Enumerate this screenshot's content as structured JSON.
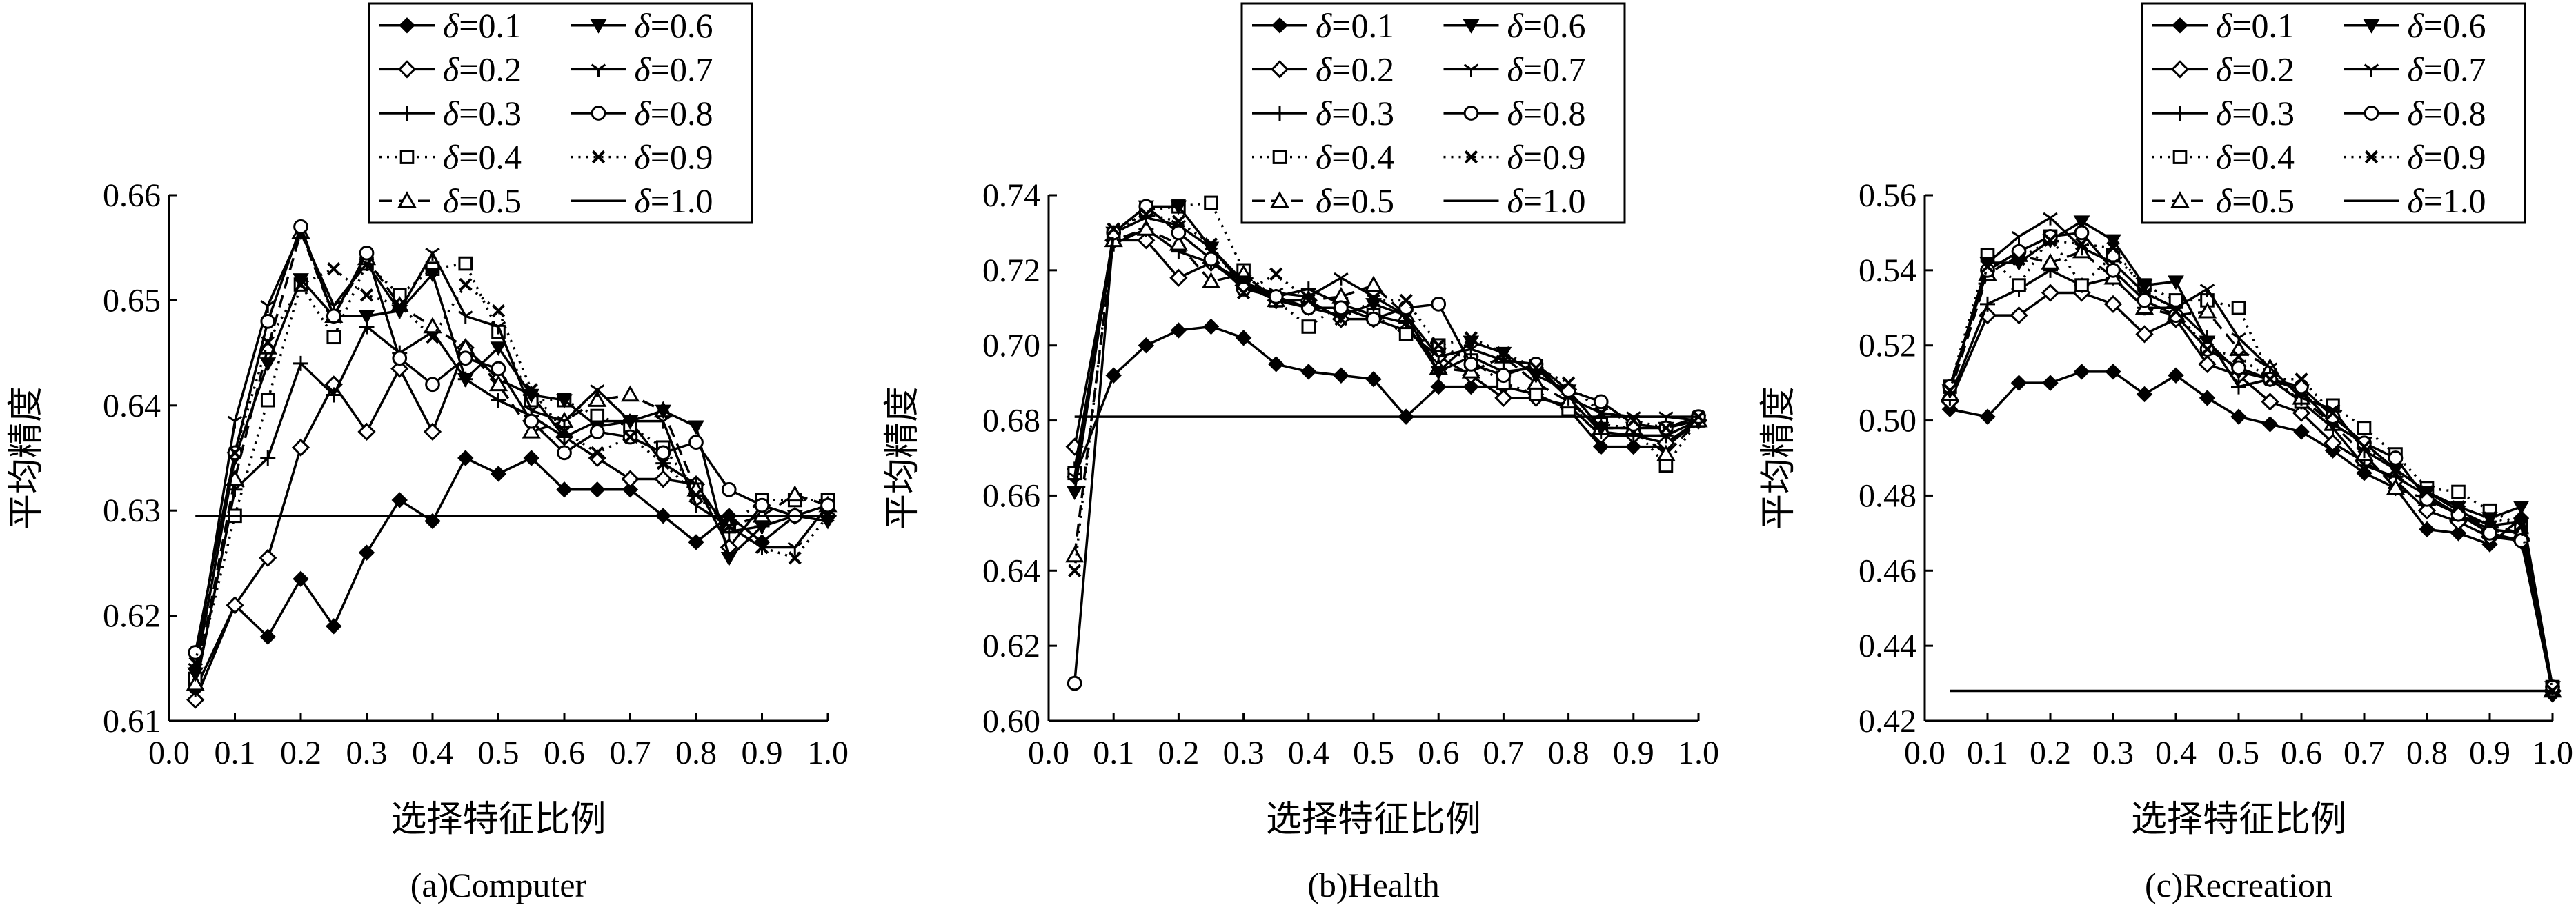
{
  "chart_data": [
    {
      "type": "line",
      "caption": "(a)Computer",
      "xlabel": "选择特征比例",
      "ylabel": "平均精度",
      "xlim": [
        0.0,
        1.0
      ],
      "ylim": [
        0.61,
        0.66
      ],
      "xticks": [
        "0.0",
        "0.1",
        "0.2",
        "0.3",
        "0.4",
        "0.5",
        "0.6",
        "0.7",
        "0.8",
        "0.9",
        "1.0"
      ],
      "yticks": [
        "0.61",
        "0.62",
        "0.63",
        "0.64",
        "0.65",
        "0.66"
      ],
      "legend_position": "top",
      "x": [
        0.04,
        0.1,
        0.15,
        0.2,
        0.25,
        0.3,
        0.35,
        0.4,
        0.45,
        0.5,
        0.55,
        0.6,
        0.65,
        0.7,
        0.75,
        0.8,
        0.85,
        0.9,
        0.95,
        1.0
      ],
      "series": [
        {
          "name": "δ=0.1",
          "values": [
            0.613,
            0.621,
            0.618,
            0.6235,
            0.619,
            0.626,
            0.631,
            0.629,
            0.635,
            0.6335,
            0.635,
            0.632,
            0.632,
            0.632,
            0.6295,
            0.627,
            0.6295,
            0.627,
            0.6295,
            0.6295
          ]
        },
        {
          "name": "δ=0.2",
          "values": [
            0.612,
            0.621,
            0.6255,
            0.636,
            0.642,
            0.6375,
            0.6435,
            0.6375,
            0.6455,
            0.6425,
            0.641,
            0.637,
            0.635,
            0.633,
            0.633,
            0.6325,
            0.6265,
            0.6305,
            0.6295,
            0.6295
          ]
        },
        {
          "name": "δ=0.3",
          "values": [
            0.613,
            0.632,
            0.635,
            0.644,
            0.641,
            0.6475,
            0.645,
            0.647,
            0.6425,
            0.6405,
            0.639,
            0.637,
            0.6385,
            0.6385,
            0.6345,
            0.6325,
            0.628,
            0.6285,
            0.6295,
            0.6295
          ]
        },
        {
          "name": "δ=0.4",
          "values": [
            0.614,
            0.6295,
            0.6405,
            0.6515,
            0.6465,
            0.6535,
            0.6505,
            0.653,
            0.6535,
            0.647,
            0.6405,
            0.6405,
            0.639,
            0.638,
            0.636,
            0.632,
            0.6285,
            0.631,
            0.631,
            0.631
          ]
        },
        {
          "name": "δ=0.5",
          "values": [
            0.6135,
            0.633,
            0.6455,
            0.6565,
            0.6485,
            0.654,
            0.6495,
            0.6475,
            0.6455,
            0.642,
            0.6375,
            0.6385,
            0.6405,
            0.641,
            0.6395,
            0.632,
            0.6285,
            0.6295,
            0.6315,
            0.6305
          ]
        },
        {
          "name": "δ=0.6",
          "values": [
            0.6145,
            0.635,
            0.644,
            0.652,
            0.6485,
            0.6485,
            0.649,
            0.6525,
            0.6425,
            0.6455,
            0.641,
            0.6405,
            0.638,
            0.6385,
            0.6395,
            0.638,
            0.6255,
            0.6285,
            0.6295,
            0.629
          ]
        },
        {
          "name": "δ=0.7",
          "values": [
            0.615,
            0.6385,
            0.6495,
            0.6565,
            0.6495,
            0.6535,
            0.649,
            0.6545,
            0.6485,
            0.6475,
            0.6395,
            0.6385,
            0.6415,
            0.6385,
            0.6385,
            0.6305,
            0.6285,
            0.6265,
            0.6265,
            0.6305
          ]
        },
        {
          "name": "δ=0.8",
          "values": [
            0.6165,
            0.6355,
            0.648,
            0.657,
            0.6485,
            0.6545,
            0.6445,
            0.642,
            0.6445,
            0.6435,
            0.6385,
            0.6355,
            0.6375,
            0.637,
            0.6355,
            0.6365,
            0.632,
            0.6305,
            0.6295,
            0.6305
          ]
        },
        {
          "name": "δ=0.9",
          "values": [
            0.6155,
            0.6355,
            0.646,
            0.6515,
            0.653,
            0.6505,
            0.6495,
            0.6465,
            0.6515,
            0.649,
            0.6415,
            0.6375,
            0.6355,
            0.637,
            0.6345,
            0.6315,
            0.6285,
            0.6265,
            0.6255,
            0.6295
          ]
        },
        {
          "name": "δ=1.0",
          "values": [
            0.6295,
            0.6295,
            0.6295,
            0.6295,
            0.6295,
            0.6295,
            0.6295,
            0.6295,
            0.6295,
            0.6295,
            0.6295,
            0.6295,
            0.6295,
            0.6295,
            0.6295,
            0.6295,
            0.6295,
            0.6295,
            0.6295,
            0.6295
          ]
        }
      ]
    },
    {
      "type": "line",
      "caption": "(b)Health",
      "xlabel": "选择特征比例",
      "ylabel": "平均精度",
      "xlim": [
        0.0,
        1.0
      ],
      "ylim": [
        0.6,
        0.74
      ],
      "xticks": [
        "0.0",
        "0.1",
        "0.2",
        "0.3",
        "0.4",
        "0.5",
        "0.6",
        "0.7",
        "0.8",
        "0.9",
        "1.0"
      ],
      "yticks": [
        "0.60",
        "0.62",
        "0.64",
        "0.66",
        "0.68",
        "0.70",
        "0.72",
        "0.74"
      ],
      "legend_position": "top",
      "x": [
        0.04,
        0.1,
        0.15,
        0.2,
        0.25,
        0.3,
        0.35,
        0.4,
        0.45,
        0.5,
        0.55,
        0.6,
        0.65,
        0.7,
        0.75,
        0.8,
        0.85,
        0.9,
        0.95,
        1.0
      ],
      "series": [
        {
          "name": "δ=0.1",
          "values": [
            0.665,
            0.692,
            0.7,
            0.704,
            0.705,
            0.702,
            0.695,
            0.693,
            0.692,
            0.691,
            0.681,
            0.689,
            0.689,
            0.689,
            0.687,
            0.683,
            0.673,
            0.673,
            0.673,
            0.68
          ]
        },
        {
          "name": "δ=0.2",
          "values": [
            0.673,
            0.728,
            0.728,
            0.718,
            0.722,
            0.716,
            0.712,
            0.712,
            0.707,
            0.707,
            0.704,
            0.697,
            0.692,
            0.686,
            0.686,
            0.684,
            0.676,
            0.676,
            0.674,
            0.68
          ]
        },
        {
          "name": "δ=0.3",
          "values": [
            0.667,
            0.727,
            0.731,
            0.725,
            0.722,
            0.717,
            0.713,
            0.715,
            0.711,
            0.708,
            0.706,
            0.693,
            0.697,
            0.693,
            0.694,
            0.686,
            0.677,
            0.676,
            0.676,
            0.68
          ]
        },
        {
          "name": "δ=0.4",
          "values": [
            0.666,
            0.729,
            0.736,
            0.737,
            0.738,
            0.72,
            0.712,
            0.705,
            0.711,
            0.708,
            0.703,
            0.7,
            0.696,
            0.69,
            0.687,
            0.683,
            0.679,
            0.678,
            0.668,
            0.68
          ]
        },
        {
          "name": "δ=0.5",
          "values": [
            0.644,
            0.728,
            0.731,
            0.727,
            0.717,
            0.719,
            0.712,
            0.712,
            0.713,
            0.716,
            0.708,
            0.694,
            0.693,
            0.697,
            0.69,
            0.685,
            0.678,
            0.678,
            0.671,
            0.68
          ]
        },
        {
          "name": "δ=0.6",
          "values": [
            0.661,
            0.73,
            0.737,
            0.737,
            0.726,
            0.717,
            0.712,
            0.71,
            0.708,
            0.711,
            0.708,
            0.693,
            0.701,
            0.698,
            0.692,
            0.688,
            0.678,
            0.678,
            0.678,
            0.68
          ]
        },
        {
          "name": "δ=0.7",
          "values": [
            0.665,
            0.73,
            0.734,
            0.732,
            0.726,
            0.716,
            0.714,
            0.713,
            0.718,
            0.713,
            0.708,
            0.697,
            0.699,
            0.696,
            0.695,
            0.686,
            0.682,
            0.681,
            0.681,
            0.68
          ]
        },
        {
          "name": "δ=0.8",
          "values": [
            0.61,
            0.73,
            0.737,
            0.73,
            0.723,
            0.715,
            0.713,
            0.71,
            0.71,
            0.707,
            0.71,
            0.711,
            0.695,
            0.692,
            0.695,
            0.688,
            0.685,
            0.679,
            0.678,
            0.681
          ]
        },
        {
          "name": "δ=0.9",
          "values": [
            0.64,
            0.731,
            0.735,
            0.733,
            0.727,
            0.714,
            0.719,
            0.712,
            0.707,
            0.712,
            0.712,
            0.7,
            0.702,
            0.698,
            0.694,
            0.69,
            0.682,
            0.68,
            0.678,
            0.681
          ]
        },
        {
          "name": "δ=1.0",
          "values": [
            0.681,
            0.681,
            0.681,
            0.681,
            0.681,
            0.681,
            0.681,
            0.681,
            0.681,
            0.681,
            0.681,
            0.681,
            0.681,
            0.681,
            0.681,
            0.681,
            0.681,
            0.681,
            0.681,
            0.681
          ]
        }
      ]
    },
    {
      "type": "line",
      "caption": "(c)Recreation",
      "xlabel": "选择特征比例",
      "ylabel": "平均精度",
      "xlim": [
        0.0,
        1.0
      ],
      "ylim": [
        0.42,
        0.56
      ],
      "xticks": [
        "0.0",
        "0.1",
        "0.2",
        "0.3",
        "0.4",
        "0.5",
        "0.6",
        "0.7",
        "0.8",
        "0.9",
        "1.0"
      ],
      "yticks": [
        "0.42",
        "0.44",
        "0.46",
        "0.48",
        "0.50",
        "0.52",
        "0.54",
        "0.56"
      ],
      "legend_position": "top",
      "x": [
        0.04,
        0.1,
        0.15,
        0.2,
        0.25,
        0.3,
        0.35,
        0.4,
        0.45,
        0.5,
        0.55,
        0.6,
        0.65,
        0.7,
        0.75,
        0.8,
        0.85,
        0.9,
        0.95,
        1.0
      ],
      "series": [
        {
          "name": "δ=0.1",
          "values": [
            0.503,
            0.501,
            0.51,
            0.51,
            0.513,
            0.513,
            0.507,
            0.512,
            0.506,
            0.501,
            0.499,
            0.497,
            0.492,
            0.486,
            0.482,
            0.471,
            0.47,
            0.467,
            0.474,
            0.427
          ]
        },
        {
          "name": "δ=0.2",
          "values": [
            0.505,
            0.528,
            0.528,
            0.534,
            0.534,
            0.531,
            0.523,
            0.527,
            0.515,
            0.512,
            0.505,
            0.502,
            0.494,
            0.489,
            0.484,
            0.476,
            0.473,
            0.469,
            0.468,
            0.428
          ]
        },
        {
          "name": "δ=0.3",
          "values": [
            0.506,
            0.531,
            0.535,
            0.54,
            0.536,
            0.538,
            0.53,
            0.53,
            0.522,
            0.509,
            0.511,
            0.505,
            0.498,
            0.488,
            0.485,
            0.48,
            0.475,
            0.471,
            0.47,
            0.428
          ]
        },
        {
          "name": "δ=0.4",
          "values": [
            0.509,
            0.544,
            0.536,
            0.549,
            0.536,
            0.544,
            0.536,
            0.532,
            0.532,
            0.53,
            0.512,
            0.505,
            0.504,
            0.498,
            0.491,
            0.482,
            0.481,
            0.476,
            0.472,
            0.429
          ]
        },
        {
          "name": "δ=0.5",
          "values": [
            0.507,
            0.539,
            0.544,
            0.542,
            0.545,
            0.538,
            0.53,
            0.528,
            0.529,
            0.519,
            0.514,
            0.506,
            0.499,
            0.491,
            0.482,
            0.479,
            0.475,
            0.472,
            0.47,
            0.428
          ]
        },
        {
          "name": "δ=0.6",
          "values": [
            0.508,
            0.542,
            0.542,
            0.548,
            0.553,
            0.548,
            0.536,
            0.537,
            0.521,
            0.513,
            0.511,
            0.508,
            0.499,
            0.494,
            0.487,
            0.481,
            0.477,
            0.474,
            0.477,
            0.429
          ]
        },
        {
          "name": "δ=0.7",
          "values": [
            0.508,
            0.542,
            0.549,
            0.554,
            0.546,
            0.542,
            0.534,
            0.53,
            0.535,
            0.522,
            0.514,
            0.506,
            0.503,
            0.492,
            0.487,
            0.481,
            0.476,
            0.472,
            0.473,
            0.429
          ]
        },
        {
          "name": "δ=0.8",
          "values": [
            0.509,
            0.54,
            0.545,
            0.549,
            0.55,
            0.54,
            0.532,
            0.528,
            0.519,
            0.514,
            0.511,
            0.509,
            0.501,
            0.494,
            0.49,
            0.479,
            0.475,
            0.47,
            0.468,
            0.429
          ]
        },
        {
          "name": "δ=0.9",
          "values": [
            0.508,
            0.541,
            0.543,
            0.548,
            0.547,
            0.546,
            0.535,
            0.529,
            0.519,
            0.517,
            0.511,
            0.511,
            0.502,
            0.493,
            0.487,
            0.481,
            0.477,
            0.474,
            0.472,
            0.428
          ]
        },
        {
          "name": "δ=1.0",
          "values": [
            0.428,
            0.428,
            0.428,
            0.428,
            0.428,
            0.428,
            0.428,
            0.428,
            0.428,
            0.428,
            0.428,
            0.428,
            0.428,
            0.428,
            0.428,
            0.428,
            0.428,
            0.428,
            0.428,
            0.428
          ]
        }
      ]
    }
  ]
}
